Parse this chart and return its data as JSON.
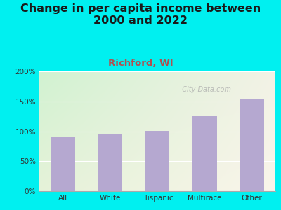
{
  "title": "Change in per capita income between\n2000 and 2022",
  "subtitle": "Richford, WI",
  "categories": [
    "All",
    "White",
    "Hispanic",
    "Multirace",
    "Other"
  ],
  "values": [
    90,
    96,
    101,
    125,
    153
  ],
  "bar_color": "#b5a8d0",
  "title_fontsize": 11.5,
  "subtitle_fontsize": 9.5,
  "subtitle_color": "#b05050",
  "title_color": "#1a1a1a",
  "bg_outer": "#00f0f0",
  "ylim": [
    0,
    200
  ],
  "yticks": [
    0,
    50,
    100,
    150,
    200
  ],
  "ytick_labels": [
    "0%",
    "50%",
    "100%",
    "150%",
    "200%"
  ],
  "watermark": "City-Data.com"
}
